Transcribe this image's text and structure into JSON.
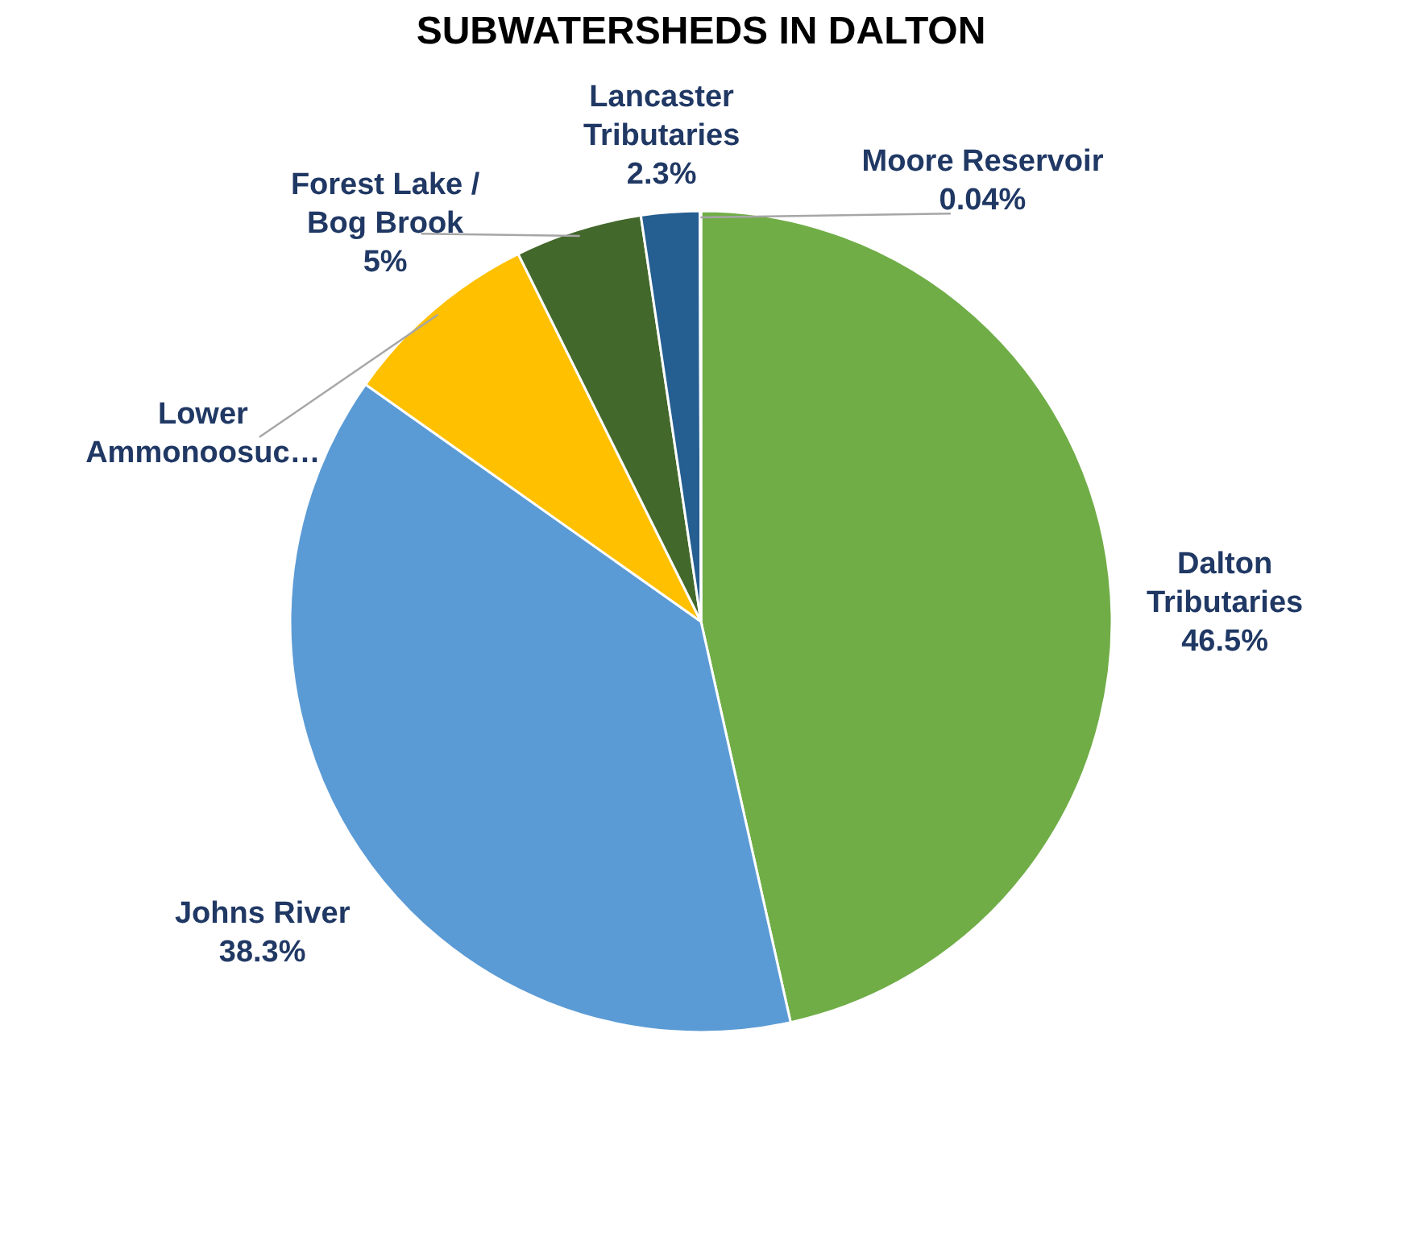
{
  "chart_data": {
    "type": "pie",
    "title": "SUBWATERSHEDS IN DALTON",
    "categories": [
      "Dalton Tributaries",
      "Johns River",
      "Lower Ammonoosuc…",
      "Forest Lake / Bog Brook",
      "Lancaster Tributaries",
      "Moore Reservoir"
    ],
    "values": [
      46.5,
      38.3,
      7.86,
      5,
      2.3,
      0.04
    ],
    "colors": [
      "#70ad47",
      "#5b9bd5",
      "#ffc000",
      "#43682b",
      "#255e91",
      "#264478"
    ],
    "value_labels": [
      "46.5%",
      "38.3%",
      null,
      "5%",
      "2.3%",
      "0.04%"
    ]
  }
}
